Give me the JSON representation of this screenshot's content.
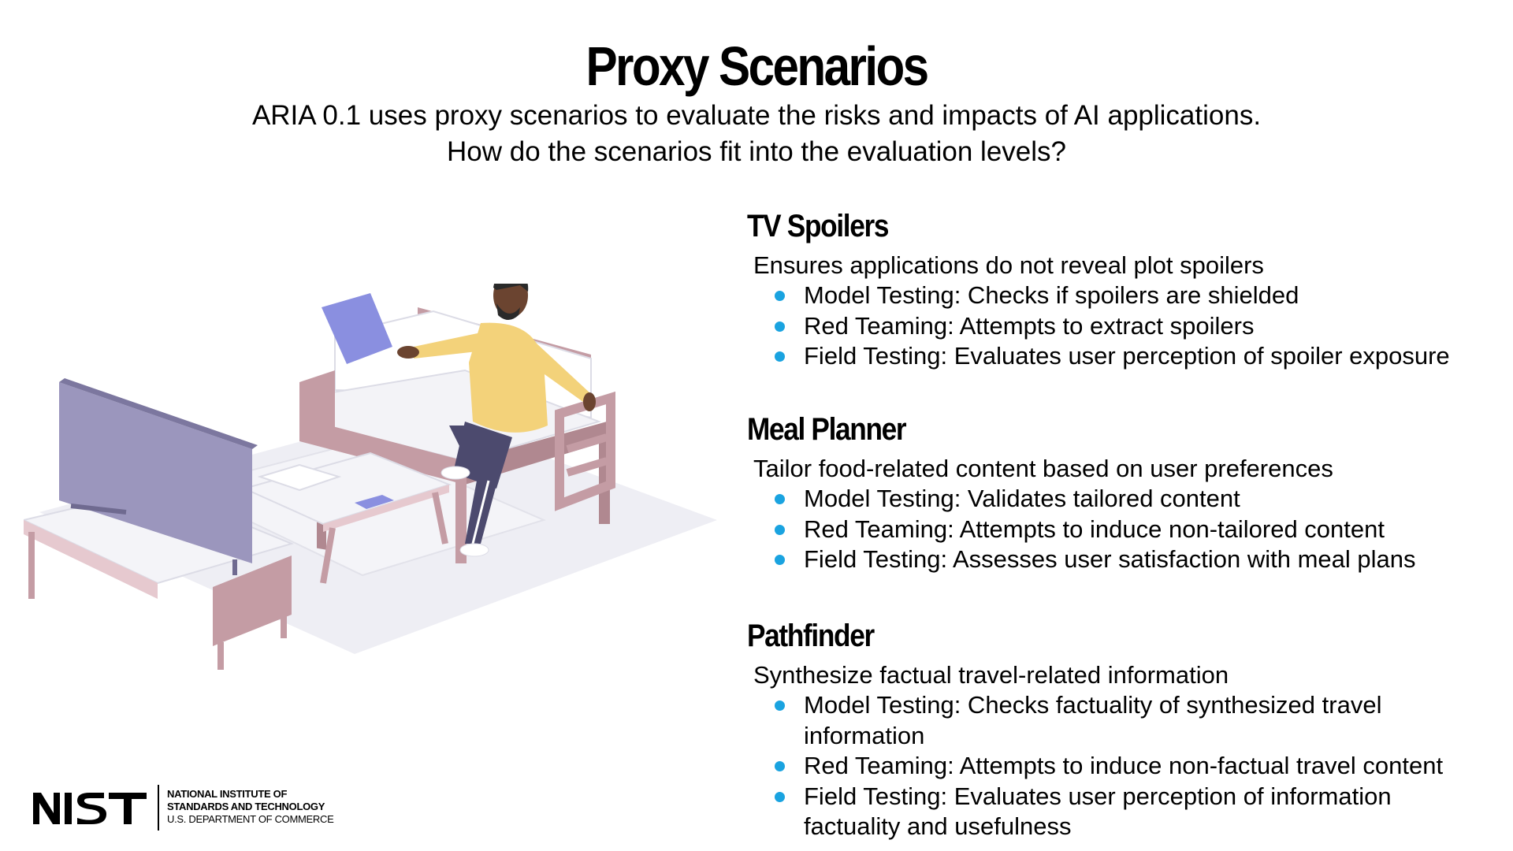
{
  "slide": {
    "title": "Proxy Scenarios",
    "subtitle_line1": "ARIA 0.1 uses proxy scenarios to evaluate the risks and impacts of AI applications.",
    "subtitle_line2": "How do the scenarios fit into the evaluation levels?"
  },
  "scenarios": [
    {
      "title": "TV Spoilers",
      "description": "Ensures applications do not reveal plot spoilers",
      "bullets": [
        "Model Testing: Checks if spoilers are shielded",
        "Red Teaming: Attempts to extract spoilers",
        "Field Testing: Evaluates user perception of spoiler exposure"
      ]
    },
    {
      "title": "Meal Planner",
      "description": "Tailor food-related content based on user preferences",
      "bullets": [
        "Model Testing: Validates tailored content",
        "Red Teaming: Attempts to induce non-tailored content",
        "Field Testing: Assesses user satisfaction with meal plans"
      ]
    },
    {
      "title": "Pathfinder",
      "description": "Synthesize factual travel-related information",
      "bullets": [
        "Model Testing: Checks factuality of synthesized travel information",
        "Red Teaming: Attempts to induce non-factual travel content",
        "Field Testing: Evaluates user perception of information factuality and usefulness"
      ]
    }
  ],
  "logo": {
    "mark": "NIST",
    "line1": "NATIONAL INSTITUTE OF",
    "line2": "STANDARDS AND TECHNOLOGY",
    "line3": "U.S. DEPARTMENT OF COMMERCE"
  },
  "colors": {
    "bullet": "#1aa3e0",
    "furniture": "#c49ca4",
    "tv": "#9b96bd",
    "pillow": "#8a8fe0",
    "sweater": "#f3d27a",
    "pants": "#4c4a6e",
    "skin": "#6b4430"
  }
}
